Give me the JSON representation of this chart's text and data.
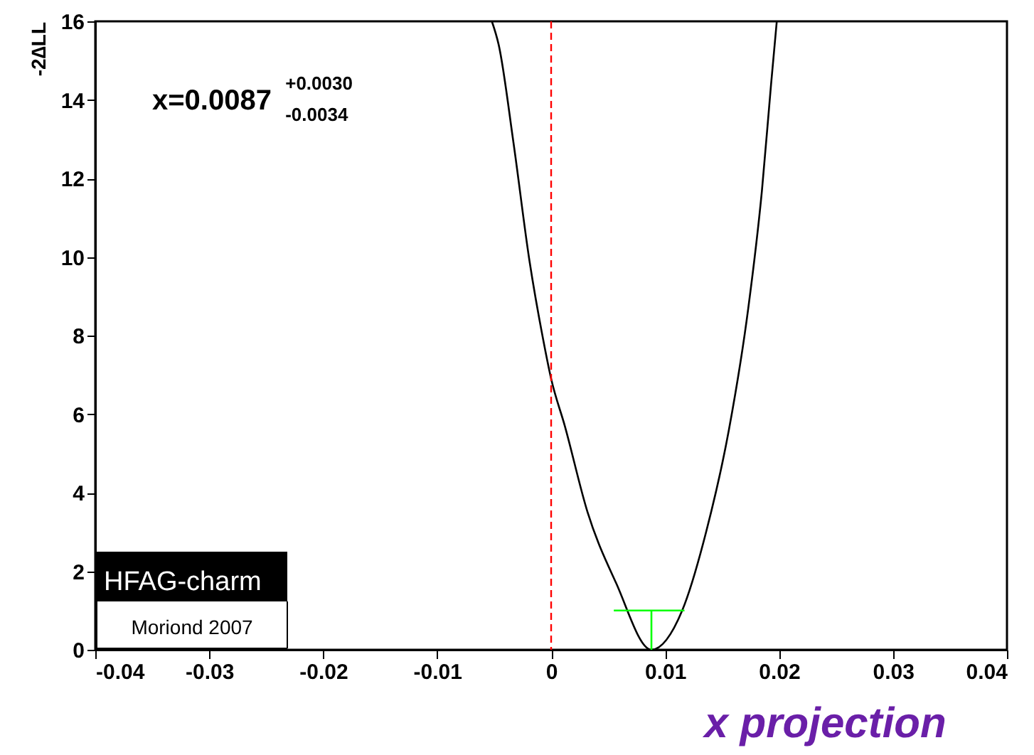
{
  "chart_data": {
    "type": "line",
    "xlabel": "x projection",
    "ylabel": "-2∆LL",
    "xlim": [
      -0.04,
      0.04
    ],
    "xticks": [
      -0.04,
      -0.03,
      -0.02,
      -0.01,
      0,
      0.01,
      0.02,
      0.03,
      0.04
    ],
    "ylim": [
      0,
      16
    ],
    "yticks": [
      0,
      2,
      4,
      6,
      8,
      10,
      12,
      14,
      16
    ],
    "series": [
      {
        "color": "#000000",
        "x": [
          -0.0052,
          -0.0046,
          -0.0033,
          -0.0019,
          -0.0007,
          0,
          0.0012,
          0.0032,
          0.0057,
          0.0088,
          0.0115,
          0.0136,
          0.0156,
          0.0173,
          0.0185,
          0.0193,
          0.0198
        ],
        "values": [
          16,
          15.4,
          12.9,
          9.9,
          7.9,
          6.9,
          5.7,
          3.5,
          1.7,
          0,
          1.0,
          3.0,
          5.6,
          8.7,
          11.7,
          14.4,
          16
        ]
      },
      {
        "color": "#00ff00",
        "x": [
          0.0055,
          0.0117
        ],
        "values": [
          1,
          1
        ]
      },
      {
        "color": "#00ff00",
        "x": [
          0.0088,
          0.0088
        ],
        "values": [
          0,
          1
        ]
      }
    ],
    "ref_lines": [
      {
        "axis": "x",
        "value": 0,
        "color": "#ff0000",
        "line_style": "dashed"
      }
    ],
    "annotations": [
      "x=0.0087$^{+0.0030}$$_{-0.0034}$",
      "HFAG-charm",
      "Moriond 2007"
    ],
    "grid": false,
    "marker": "none",
    "line_style": "solid"
  }
}
